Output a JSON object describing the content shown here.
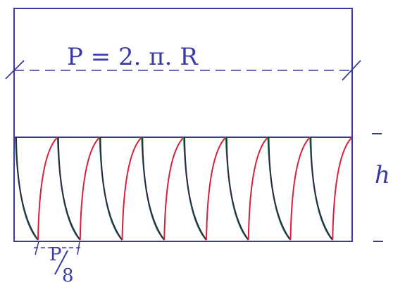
{
  "formula": "P = 2. π. R",
  "height_label": "h",
  "segment_label": {
    "numerator": "P",
    "denominator": "8"
  }
}
